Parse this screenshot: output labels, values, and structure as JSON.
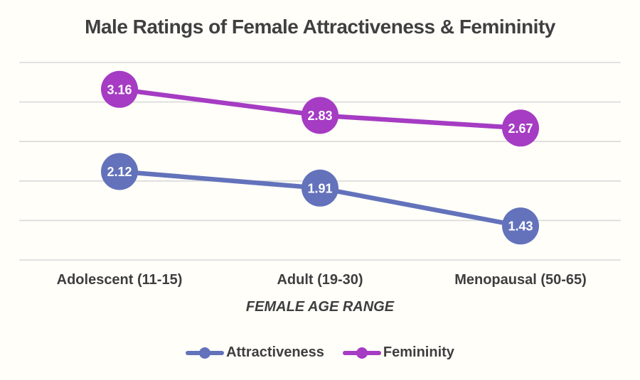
{
  "chart_data": {
    "type": "line",
    "title": "Male Ratings of Female Attractiveness & Femininity",
    "xlabel": "FEMALE AGE RANGE",
    "ylabel": "",
    "categories": [
      "Adolescent (11-15)",
      "Adult (19-30)",
      "Menopausal (50-65)"
    ],
    "series": [
      {
        "name": "Attractiveness",
        "color": "#6372BB",
        "values": [
          2.12,
          1.91,
          1.43
        ]
      },
      {
        "name": "Femininity",
        "color": "#A53CC3",
        "values": [
          3.16,
          2.83,
          2.67
        ]
      }
    ],
    "ylim": [
      1.0,
      3.5
    ],
    "gridline_step": 0.5,
    "grid": true,
    "legend_position": "bottom",
    "data_labels": "centered-on-marker",
    "colors": {
      "background": "#FFFEF9",
      "gridline": "#D9D9D9",
      "title_text": "#404040",
      "axis_text": "#3E3E3E",
      "data_label_text": "#FFFFFF"
    }
  }
}
